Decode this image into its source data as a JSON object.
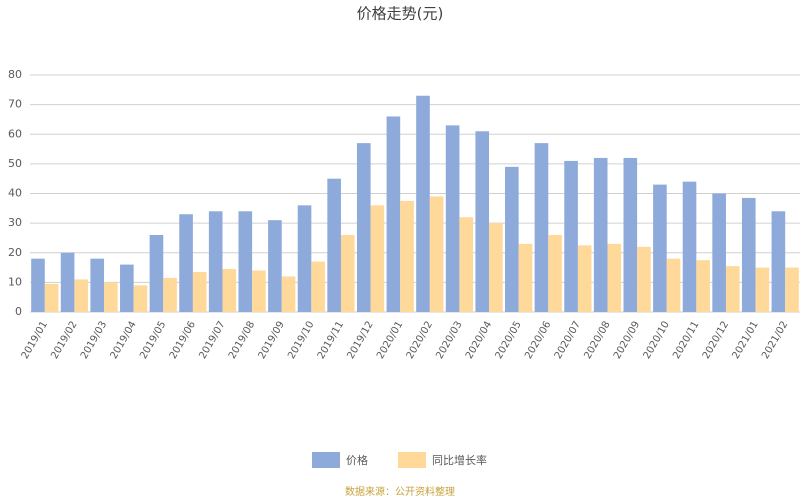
{
  "chart_data": {
    "type": "bar",
    "title": "价格走势(元)",
    "categories": [
      "2019/01",
      "2019/02",
      "2019/03",
      "2019/04",
      "2019/05",
      "2019/06",
      "2019/07",
      "2019/08",
      "2019/09",
      "2019/10",
      "2019/11",
      "2019/12",
      "2020/01",
      "2020/02",
      "2020/03",
      "2020/04",
      "2020/05",
      "2020/06",
      "2020/07",
      "2020/08",
      "2020/09",
      "2020/10",
      "2020/11",
      "2020/12",
      "2021/01",
      "2021/02"
    ],
    "series": [
      {
        "name": "价格",
        "color": "#8eaadb",
        "values": [
          18,
          20,
          18,
          16,
          26,
          33,
          34,
          34,
          31,
          36,
          45,
          57,
          66,
          73,
          63,
          61,
          49,
          57,
          51,
          52,
          52,
          43,
          44,
          40,
          38.5,
          34
        ]
      },
      {
        "name": "同比增长率",
        "color": "#ffd99a",
        "values": [
          9.5,
          11,
          10,
          9,
          11.5,
          13.5,
          14.5,
          14,
          12,
          17,
          26,
          36,
          37.5,
          39,
          32,
          30,
          23,
          26,
          22.5,
          23,
          22,
          18,
          17.5,
          15.5,
          15,
          15
        ]
      }
    ],
    "ylim": [
      0,
      80
    ],
    "yticks": [
      0,
      10,
      20,
      30,
      40,
      50,
      60,
      70,
      80
    ],
    "grid": true,
    "source": "数据来源：公开资料整理"
  }
}
